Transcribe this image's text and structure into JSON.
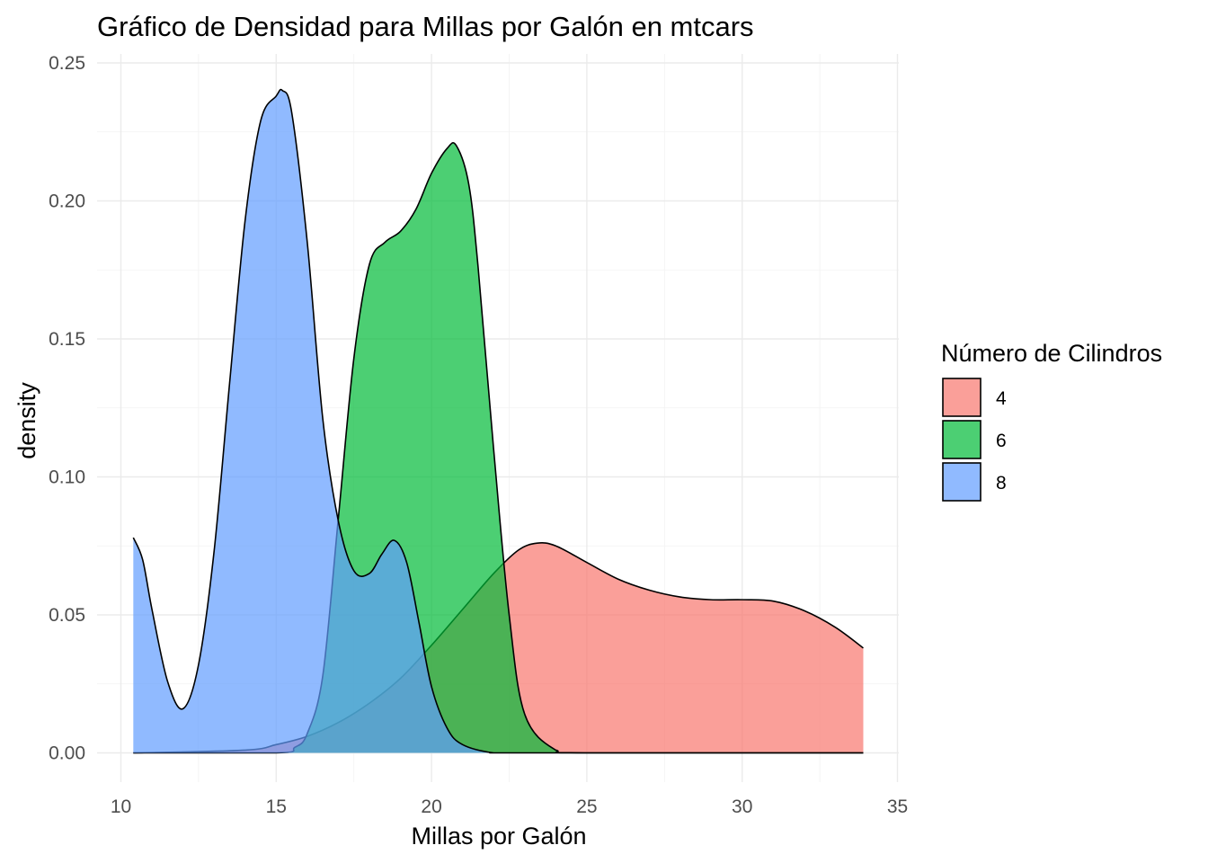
{
  "chart_data": {
    "type": "area",
    "title": "Gráfico de Densidad para Millas por Galón en mtcars",
    "xlabel": "Millas por Galón",
    "ylabel": "density",
    "xlim": [
      10,
      35
    ],
    "ylim": [
      0,
      0.25
    ],
    "x_ticks": [
      "10",
      "15",
      "20",
      "25",
      "30",
      "35"
    ],
    "y_ticks": [
      "0.00",
      "0.05",
      "0.10",
      "0.15",
      "0.20",
      "0.25"
    ],
    "grid": true,
    "legend": {
      "title": "Número de Cilindros",
      "position": "right"
    },
    "series": [
      {
        "name": "4",
        "color": "#F8766D",
        "x": [
          10.4,
          14.0,
          15.0,
          16.0,
          17.0,
          18.0,
          19.0,
          20.0,
          21.0,
          22.0,
          22.8,
          23.4,
          24.0,
          25.0,
          26.0,
          27.0,
          28.0,
          29.0,
          30.0,
          31.0,
          32.0,
          33.0,
          33.9
        ],
        "y": [
          0.0,
          0.001,
          0.003,
          0.006,
          0.011,
          0.018,
          0.027,
          0.039,
          0.052,
          0.065,
          0.0735,
          0.076,
          0.075,
          0.069,
          0.063,
          0.059,
          0.0565,
          0.0555,
          0.0555,
          0.055,
          0.0515,
          0.0455,
          0.038
        ]
      },
      {
        "name": "6",
        "color": "#00BA38",
        "x": [
          10.4,
          15.0,
          15.6,
          16.0,
          16.5,
          17.0,
          17.5,
          18.0,
          18.5,
          19.0,
          19.5,
          20.0,
          20.5,
          20.8,
          21.2,
          21.5,
          22.0,
          22.5,
          23.0,
          24.0,
          25.0,
          33.9
        ],
        "y": [
          0.0,
          0.0,
          0.002,
          0.007,
          0.028,
          0.085,
          0.143,
          0.177,
          0.185,
          0.189,
          0.197,
          0.21,
          0.219,
          0.22,
          0.206,
          0.176,
          0.11,
          0.05,
          0.014,
          0.001,
          0.0,
          0.0
        ]
      },
      {
        "name": "8",
        "color": "#619CFF",
        "x": [
          10.4,
          10.7,
          11.0,
          11.5,
          12.0,
          12.5,
          13.0,
          13.5,
          14.0,
          14.5,
          15.0,
          15.2,
          15.5,
          16.0,
          16.5,
          17.0,
          17.5,
          18.0,
          18.4,
          18.8,
          19.2,
          19.6,
          20.0,
          20.5,
          21.0,
          22.0,
          23.0,
          33.9
        ],
        "y": [
          0.078,
          0.07,
          0.052,
          0.026,
          0.016,
          0.032,
          0.073,
          0.134,
          0.193,
          0.229,
          0.238,
          0.24,
          0.232,
          0.185,
          0.121,
          0.084,
          0.066,
          0.065,
          0.072,
          0.077,
          0.069,
          0.047,
          0.024,
          0.009,
          0.003,
          0.0,
          0.0,
          0.0
        ]
      }
    ]
  }
}
